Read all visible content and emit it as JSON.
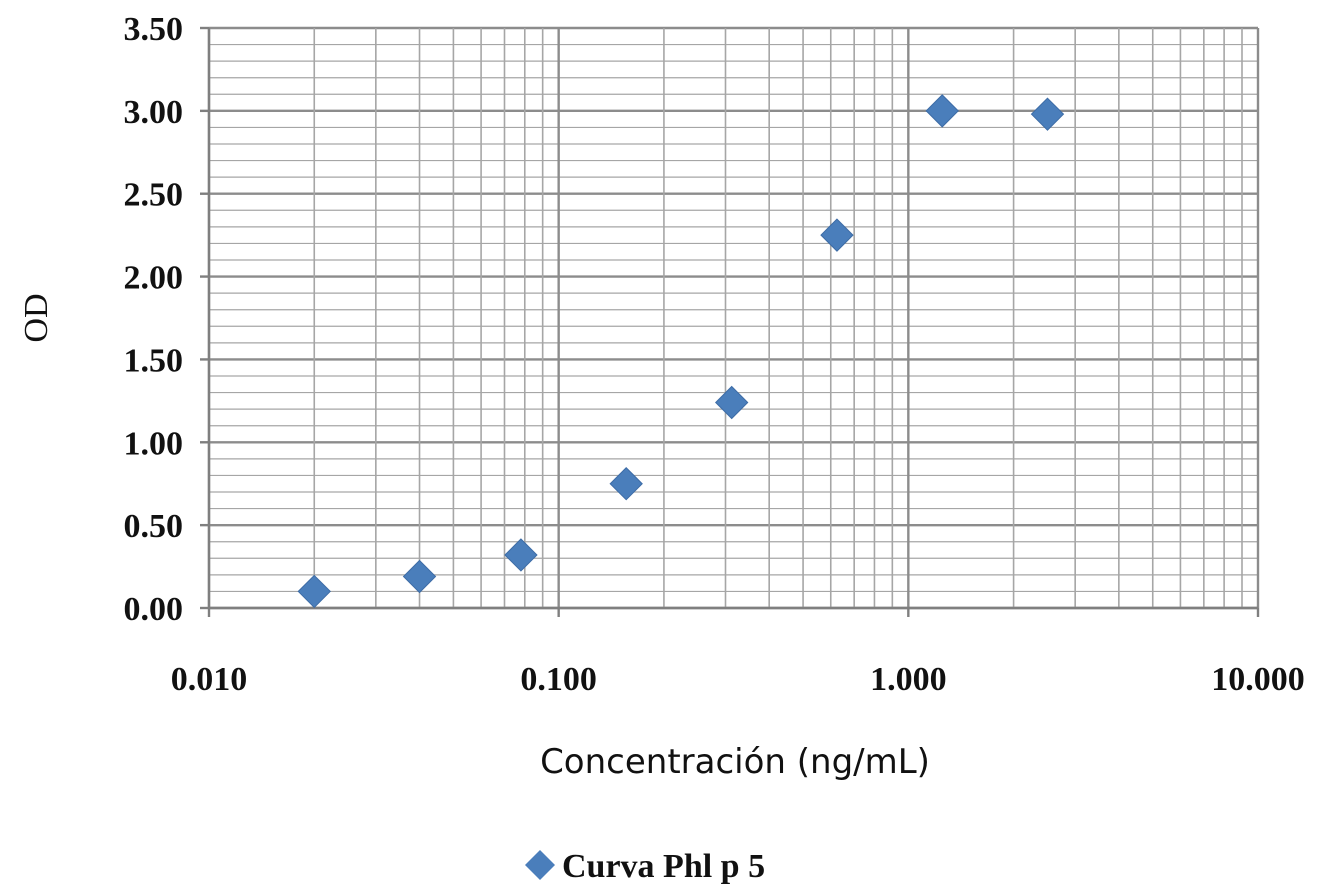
{
  "chart_data": {
    "type": "scatter",
    "x_scale": "log",
    "xlabel": "Concentración (ng/mL)",
    "ylabel": "OD",
    "xlim": [
      0.01,
      10
    ],
    "ylim": [
      0,
      3.5
    ],
    "x_ticks": [
      "0.010",
      "0.100",
      "1.000",
      "10.000"
    ],
    "y_ticks": [
      "0.00",
      "0.50",
      "1.00",
      "1.50",
      "2.00",
      "2.50",
      "3.00",
      "3.50"
    ],
    "grid": true,
    "legend": "bottom",
    "series": [
      {
        "name": "Curva Phl p 5",
        "marker": "diamond",
        "color": "#4a7ebb",
        "points": [
          {
            "x": 0.02,
            "y": 0.1
          },
          {
            "x": 0.04,
            "y": 0.19
          },
          {
            "x": 0.078,
            "y": 0.32
          },
          {
            "x": 0.156,
            "y": 0.75
          },
          {
            "x": 0.3125,
            "y": 1.24
          },
          {
            "x": 0.625,
            "y": 2.25
          },
          {
            "x": 1.25,
            "y": 3.0
          },
          {
            "x": 2.5,
            "y": 2.98
          }
        ]
      }
    ]
  }
}
